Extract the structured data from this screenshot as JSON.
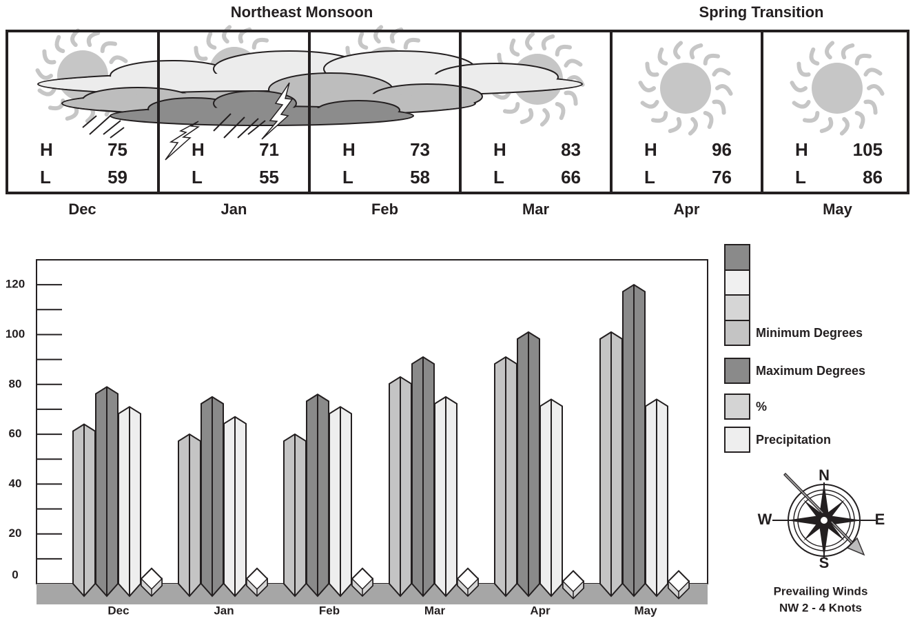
{
  "header": {
    "seasons": [
      "Northeast Monsoon",
      "Spring Transition"
    ],
    "high_label": "H",
    "low_label": "L",
    "months": [
      {
        "name": "Dec",
        "high": 75,
        "low": 59
      },
      {
        "name": "Jan",
        "high": 71,
        "low": 55
      },
      {
        "name": "Feb",
        "high": 73,
        "low": 58
      },
      {
        "name": "Mar",
        "high": 83,
        "low": 66
      },
      {
        "name": "Apr",
        "high": 96,
        "low": 76
      },
      {
        "name": "May",
        "high": 105,
        "low": 86
      }
    ]
  },
  "chart_data": {
    "type": "bar",
    "categories": [
      "Dec",
      "Jan",
      "Feb",
      "Mar",
      "Apr",
      "May"
    ],
    "series": [
      {
        "name": "Minimum Degrees",
        "color": "#c4c4c4",
        "values": [
          64,
          60,
          60,
          83,
          91,
          101
        ]
      },
      {
        "name": "Maximum Degrees",
        "color": "#8a8a8a",
        "values": [
          79,
          75,
          76,
          91,
          101,
          120
        ]
      },
      {
        "name": "%",
        "color": "#d4d4d4",
        "values": [
          2,
          2,
          2,
          2,
          1,
          1
        ]
      },
      {
        "name": "Precipitation",
        "color": "#eeeeee",
        "values": [
          71,
          67,
          71,
          75,
          74,
          74
        ]
      }
    ],
    "ylim": [
      0,
      130
    ],
    "yticks": [
      0,
      20,
      40,
      60,
      80,
      100,
      120
    ],
    "yminorticks": [
      10,
      30,
      50,
      70,
      90,
      110
    ]
  },
  "compass": {
    "north": "N",
    "south": "S",
    "west": "W",
    "east": "E",
    "caption": [
      "Prevailing Winds",
      "NW 2 - 4 Knots"
    ]
  }
}
